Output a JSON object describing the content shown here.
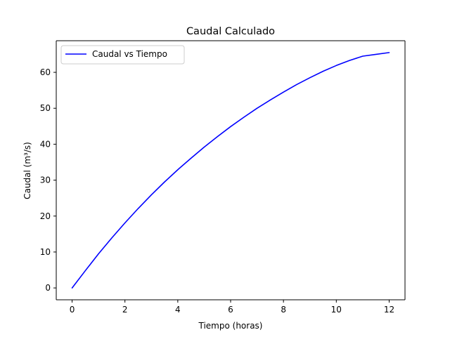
{
  "chart_data": {
    "type": "line",
    "title": "Caudal Calculado",
    "xlabel": "Tiempo (horas)",
    "ylabel": "Caudal (m³/s)",
    "xlim": [
      -0.6,
      12.6
    ],
    "ylim": [
      -3.3,
      68.8
    ],
    "xticks": [
      0,
      2,
      4,
      6,
      8,
      10,
      12
    ],
    "yticks": [
      0,
      10,
      20,
      30,
      40,
      50,
      60
    ],
    "grid": false,
    "legend_position": "upper-left",
    "series": [
      {
        "name": "Caudal vs Tiempo",
        "color": "#0000ff",
        "x": [
          0,
          0.5,
          1,
          1.5,
          2,
          2.5,
          3,
          3.5,
          4,
          4.5,
          5,
          5.5,
          6,
          6.5,
          7,
          7.5,
          8,
          8.5,
          9,
          9.5,
          10,
          10.5,
          11,
          11.5,
          12
        ],
        "y": [
          0,
          4.8,
          9.5,
          13.9,
          18.1,
          22.1,
          25.9,
          29.5,
          32.9,
          36.1,
          39.2,
          42.1,
          44.9,
          47.5,
          50.0,
          52.3,
          54.5,
          56.6,
          58.5,
          60.3,
          61.9,
          63.3,
          64.5,
          65.0,
          65.5
        ]
      }
    ]
  }
}
